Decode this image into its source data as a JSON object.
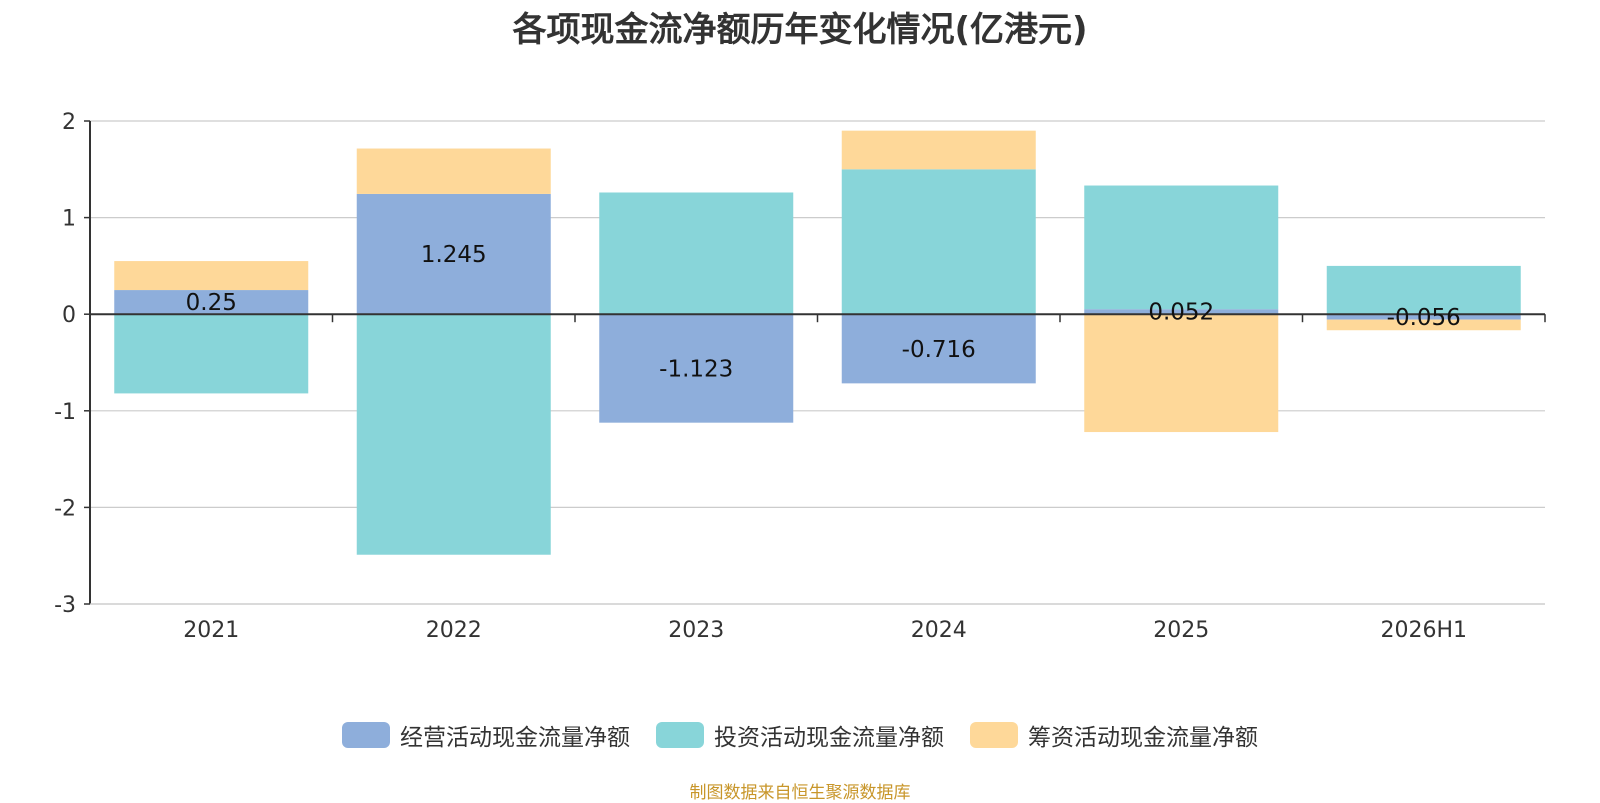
{
  "chart_data": {
    "type": "bar",
    "stacked": true,
    "title": "各项现金流净额历年变化情况(亿港元)",
    "categories": [
      "2021",
      "2022",
      "2023",
      "2024",
      "2025",
      "2026H1"
    ],
    "ylim": [
      -3,
      2
    ],
    "yticks": [
      "2",
      "1",
      "0",
      "-1",
      "-2",
      "-3"
    ],
    "grid": true,
    "legend_position": "bottom",
    "series": [
      {
        "name": "经营活动现金流量净额",
        "color": "#8eaedb",
        "values": [
          0.25,
          1.245,
          -1.123,
          -0.716,
          0.052,
          -0.056
        ],
        "labels": [
          "0.25",
          "1.245",
          "-1.123",
          "-0.716",
          "0.052",
          "-0.056"
        ]
      },
      {
        "name": "投资活动现金流量净额",
        "color": "#88d5d9",
        "values": [
          -0.82,
          -2.49,
          1.26,
          1.5,
          1.28,
          0.5
        ]
      },
      {
        "name": "筹资活动现金流量净额",
        "color": "#fed899",
        "values": [
          0.3,
          0.47,
          0.0,
          0.4,
          -1.22,
          -0.11
        ]
      }
    ]
  },
  "source_note": "制图数据来自恒生聚源数据库"
}
